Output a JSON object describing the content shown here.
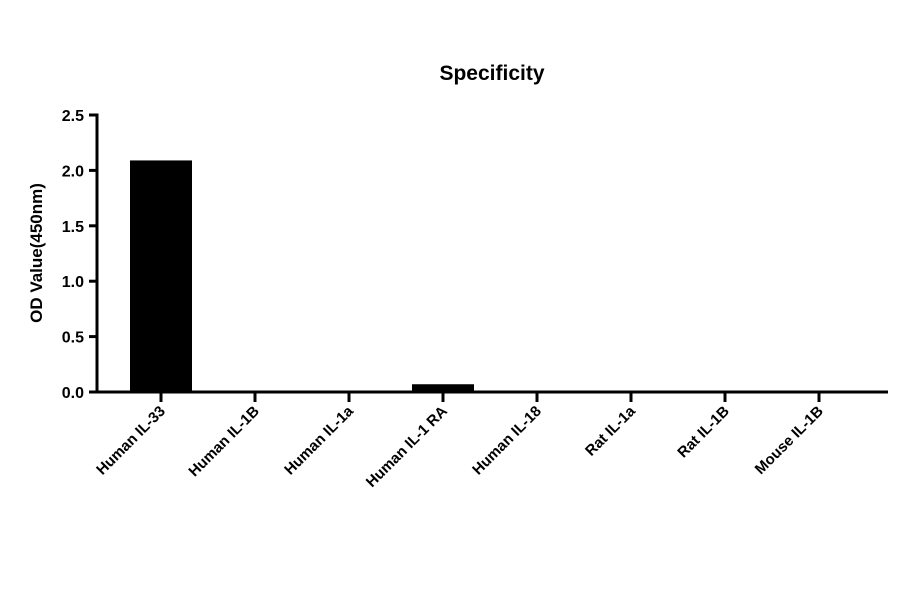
{
  "chart_data": {
    "type": "bar",
    "title": "Specificity",
    "xlabel": "",
    "ylabel": "OD Value(450nm)",
    "categories": [
      "Human IL-33",
      "Human IL-1B",
      "Human IL-1a",
      "Human IL-1 RA",
      "Human IL-18",
      "Rat IL-1a",
      "Rat IL-1B",
      "Mouse IL-1B"
    ],
    "values": [
      2.09,
      0.0,
      0.0,
      0.07,
      0.0,
      0.0,
      0.0,
      0.0
    ],
    "ylim": [
      0,
      2.5
    ],
    "yticks": [
      "0.0",
      "0.5",
      "1.0",
      "1.5",
      "2.0",
      "2.5"
    ],
    "grid": false,
    "bar_color": "#000000"
  }
}
